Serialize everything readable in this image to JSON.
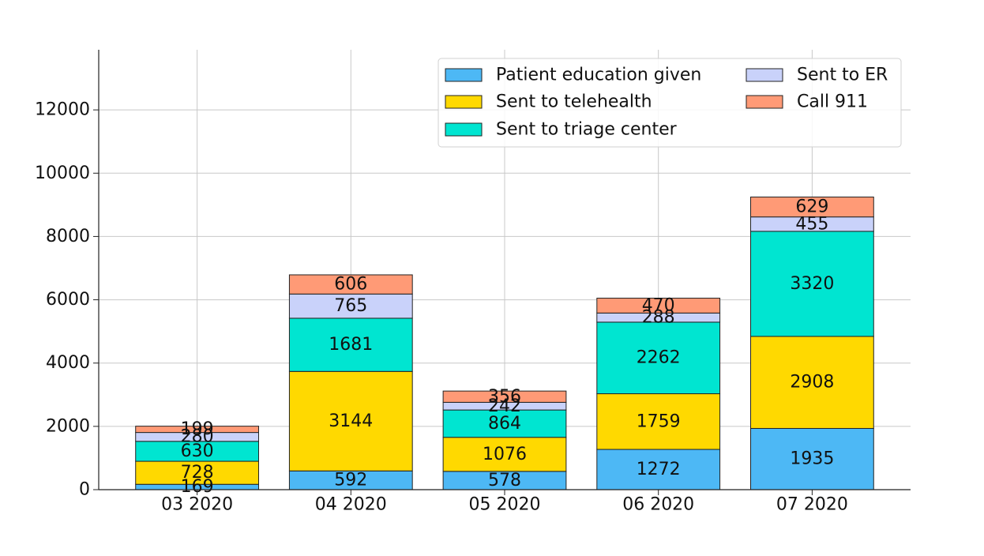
{
  "chart_data": {
    "type": "bar",
    "stacked": true,
    "title": "",
    "xlabel": "",
    "ylabel": "",
    "categories": [
      "03 2020",
      "04 2020",
      "05 2020",
      "06 2020",
      "07 2020"
    ],
    "ylim": [
      0,
      13900
    ],
    "yticks": [
      0,
      2000,
      4000,
      6000,
      8000,
      10000,
      12000
    ],
    "grid": true,
    "legend_position": "top-right",
    "series": [
      {
        "name": "Patient education given",
        "color": "#4db8f5",
        "values": [
          169,
          592,
          578,
          1272,
          1935
        ]
      },
      {
        "name": "Sent to telehealth",
        "color": "#ffd900",
        "values": [
          728,
          3144,
          1076,
          1759,
          2908
        ]
      },
      {
        "name": "Sent to triage center",
        "color": "#00e5d1",
        "values": [
          630,
          1681,
          864,
          2262,
          3320
        ]
      },
      {
        "name": "Sent to ER",
        "color": "#c9d2fa",
        "values": [
          280,
          765,
          242,
          288,
          455
        ]
      },
      {
        "name": "Call 911",
        "color": "#ff9a76",
        "values": [
          199,
          606,
          356,
          470,
          629
        ]
      }
    ]
  }
}
